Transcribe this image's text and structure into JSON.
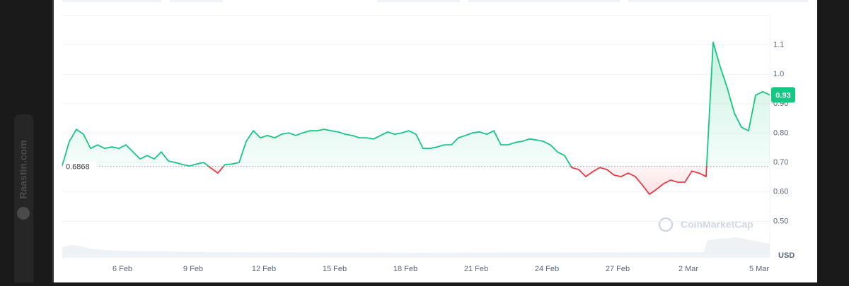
{
  "page": {
    "watermark": "Raastin.com"
  },
  "chart_data": {
    "type": "line",
    "values": [
      0.69,
      0.772,
      0.813,
      0.796,
      0.748,
      0.76,
      0.748,
      0.753,
      0.748,
      0.76,
      0.736,
      0.712,
      0.724,
      0.712,
      0.736,
      0.705,
      0.7,
      0.693,
      0.688,
      0.695,
      0.7,
      0.681,
      0.664,
      0.693,
      0.695,
      0.7,
      0.772,
      0.808,
      0.784,
      0.792,
      0.784,
      0.796,
      0.801,
      0.792,
      0.801,
      0.808,
      0.808,
      0.813,
      0.808,
      0.804,
      0.796,
      0.792,
      0.784,
      0.784,
      0.78,
      0.792,
      0.804,
      0.796,
      0.801,
      0.808,
      0.796,
      0.748,
      0.748,
      0.753,
      0.76,
      0.76,
      0.784,
      0.792,
      0.801,
      0.804,
      0.796,
      0.808,
      0.76,
      0.76,
      0.768,
      0.772,
      0.78,
      0.777,
      0.772,
      0.76,
      0.736,
      0.724,
      0.683,
      0.676,
      0.652,
      0.669,
      0.683,
      0.676,
      0.657,
      0.652,
      0.664,
      0.652,
      0.623,
      0.592,
      0.609,
      0.628,
      0.64,
      0.633,
      0.633,
      0.671,
      0.664,
      0.652,
      1.109,
      1.025,
      0.953,
      0.868,
      0.82,
      0.808,
      0.929,
      0.941,
      0.93
    ],
    "color_above": "#16c784",
    "color_below": "#ea3943",
    "baseline": 0.6868,
    "last_value": 0.93,
    "ylim": [
      0.4,
      1.2
    ],
    "yticks": [
      {
        "value": 0.5,
        "label": "0.50"
      },
      {
        "value": 0.6,
        "label": "0.60"
      },
      {
        "value": 0.7,
        "label": "0.70"
      },
      {
        "value": 0.8,
        "label": "0.80"
      },
      {
        "value": 0.9,
        "label": "0.90"
      },
      {
        "value": 1.0,
        "label": "1.0"
      },
      1.1
    ],
    "y_unit": "USD",
    "x_labels": [
      "6 Feb",
      "9 Feb",
      "12 Feb",
      "15 Feb",
      "18 Feb",
      "21 Feb",
      "24 Feb",
      "27 Feb",
      "2 Mar",
      "5 Mar"
    ],
    "grid": true,
    "watermark": "CoinMarketCap"
  }
}
